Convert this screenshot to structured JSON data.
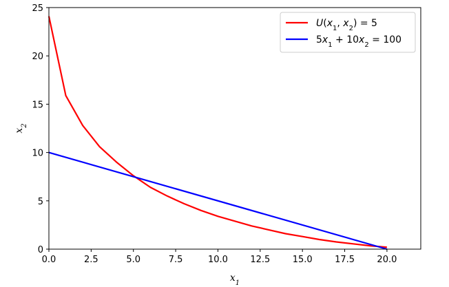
{
  "chart_data": {
    "type": "line",
    "title": "",
    "xlabel": "x",
    "xlabel_sub": "1",
    "ylabel": "x",
    "ylabel_sub": "2",
    "xlim": [
      0,
      22
    ],
    "ylim": [
      0,
      25
    ],
    "xticks": [
      0,
      2.5,
      5,
      7.5,
      10,
      12.5,
      15,
      17.5,
      20
    ],
    "xtick_labels": [
      "0.0",
      "2.5",
      "5.0",
      "7.5",
      "10.0",
      "12.5",
      "15.0",
      "17.5",
      "20.0"
    ],
    "yticks": [
      0,
      5,
      10,
      15,
      20,
      25
    ],
    "ytick_labels": [
      "0",
      "5",
      "10",
      "15",
      "20",
      "25"
    ],
    "grid": false,
    "legend_position": "top-right",
    "series": [
      {
        "name": "U(x1, x2) = 5",
        "color": "#ff0000",
        "x": [
          0,
          1,
          2,
          3,
          4,
          5,
          6,
          7,
          8,
          9,
          10,
          11,
          12,
          13,
          14,
          15,
          16,
          17,
          18,
          19,
          20
        ],
        "y": [
          24.1,
          15.9,
          12.8,
          10.6,
          9.0,
          7.6,
          6.4,
          5.5,
          4.7,
          4.0,
          3.4,
          2.9,
          2.4,
          2.0,
          1.6,
          1.3,
          1.0,
          0.75,
          0.55,
          0.35,
          0.2
        ]
      },
      {
        "name": "5x1 + 10x2 = 100",
        "color": "#0000ff",
        "x": [
          0,
          20
        ],
        "y": [
          10,
          0
        ]
      }
    ]
  }
}
